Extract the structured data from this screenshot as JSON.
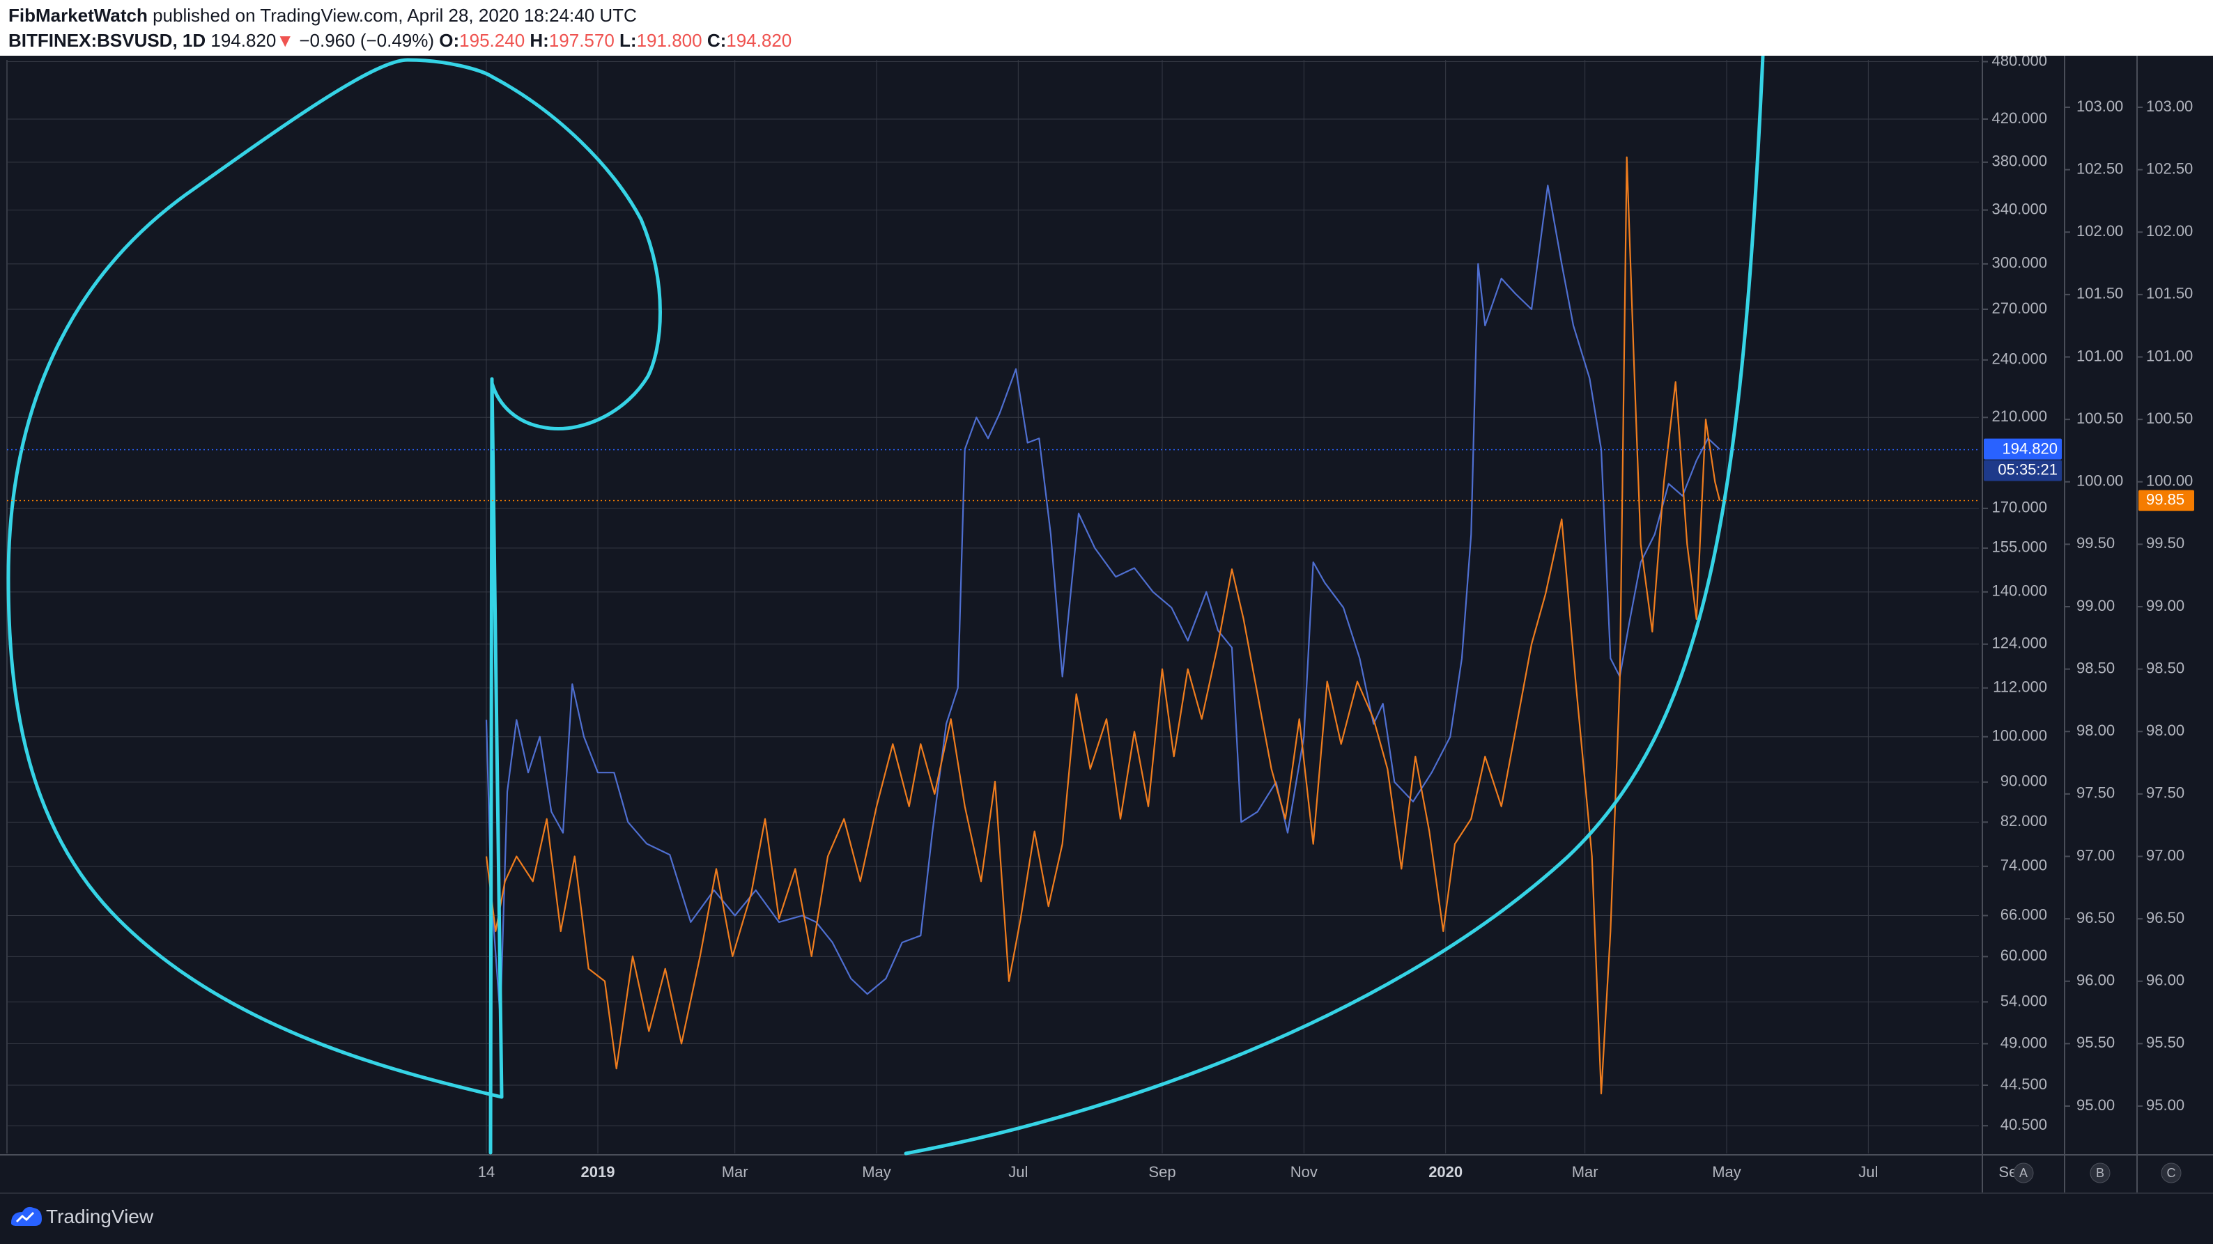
{
  "header": {
    "author": "FibMarketWatch",
    "published_text": " published on TradingView.com, April 28, 2020 18:24:40 UTC",
    "symbol": "BITFINEX:BSVUSD, 1D",
    "last": "194.820",
    "change": "−0.960 (−0.49%)",
    "open_label": "O:",
    "open": "195.240",
    "high_label": "H:",
    "high": "197.570",
    "low_label": "L:",
    "low": "191.800",
    "close_label": "C:",
    "close": "194.820"
  },
  "footer": {
    "brand": "TradingView"
  },
  "colors": {
    "background": "#131722",
    "grid": "#363a45",
    "blue_series": "#4f6fd1",
    "orange_series": "#f07d1e",
    "spiral": "#36d4e6",
    "axis_text": "#b2b5be",
    "label_blue": "#2962ff",
    "label_orange": "#f57c00"
  },
  "chart_data": {
    "type": "line",
    "x_ticks": [
      "14",
      "2019",
      "Mar",
      "May",
      "Jul",
      "Sep",
      "Nov",
      "2020",
      "Mar",
      "May",
      "Jul",
      "Sep"
    ],
    "x_range": [
      "2018-11-14",
      "2020-09-01"
    ],
    "price_axis": {
      "scale": "log",
      "ticks": [
        "480.000",
        "420.000",
        "380.000",
        "340.000",
        "300.000",
        "270.000",
        "240.000",
        "210.000",
        "170.000",
        "155.000",
        "140.000",
        "124.000",
        "112.000",
        "100.000",
        "90.000",
        "82.000",
        "74.000",
        "66.000",
        "60.000",
        "54.000",
        "49.000",
        "44.500",
        "40.500"
      ],
      "current_price_label": "194.820",
      "countdown_label": "05:35:21"
    },
    "scale_b": {
      "ticks": [
        "103.00",
        "102.50",
        "102.00",
        "101.50",
        "101.00",
        "100.50",
        "100.00",
        "99.50",
        "99.00",
        "98.50",
        "98.00",
        "97.50",
        "97.00",
        "96.50",
        "96.00",
        "95.50",
        "95.00"
      ]
    },
    "scale_c": {
      "ticks": [
        "103.00",
        "102.50",
        "102.00",
        "101.50",
        "101.00",
        "100.50",
        "100.00",
        "99.50",
        "99.00",
        "98.50",
        "98.00",
        "97.50",
        "97.00",
        "96.50",
        "96.00",
        "95.50",
        "95.00"
      ],
      "current_value_label": "99.85"
    },
    "axis_buttons": [
      "A",
      "B",
      "C"
    ],
    "series": [
      {
        "color": "#4f6fd1",
        "axis": "price",
        "points": [
          [
            "2018-11-14",
            104
          ],
          [
            "2018-11-16",
            70
          ],
          [
            "2018-11-20",
            52
          ],
          [
            "2018-11-23",
            88
          ],
          [
            "2018-11-27",
            104
          ],
          [
            "2018-12-02",
            92
          ],
          [
            "2018-12-07",
            100
          ],
          [
            "2018-12-12",
            84
          ],
          [
            "2018-12-17",
            80
          ],
          [
            "2018-12-21",
            113
          ],
          [
            "2018-12-26",
            100
          ],
          [
            "2019-01-01",
            92
          ],
          [
            "2019-01-08",
            92
          ],
          [
            "2019-01-14",
            82
          ],
          [
            "2019-01-22",
            78
          ],
          [
            "2019-02-01",
            76
          ],
          [
            "2019-02-10",
            65
          ],
          [
            "2019-02-20",
            70
          ],
          [
            "2019-03-01",
            66
          ],
          [
            "2019-03-10",
            70
          ],
          [
            "2019-03-20",
            65
          ],
          [
            "2019-03-30",
            66
          ],
          [
            "2019-04-05",
            65
          ],
          [
            "2019-04-12",
            62
          ],
          [
            "2019-04-20",
            57
          ],
          [
            "2019-04-27",
            55
          ],
          [
            "2019-05-05",
            57
          ],
          [
            "2019-05-12",
            62
          ],
          [
            "2019-05-20",
            63
          ],
          [
            "2019-05-25",
            80
          ],
          [
            "2019-05-31",
            103
          ],
          [
            "2019-06-05",
            112
          ],
          [
            "2019-06-08",
            195
          ],
          [
            "2019-06-13",
            210
          ],
          [
            "2019-06-18",
            200
          ],
          [
            "2019-06-23",
            212
          ],
          [
            "2019-06-30",
            235
          ],
          [
            "2019-07-05",
            198
          ],
          [
            "2019-07-10",
            200
          ],
          [
            "2019-07-15",
            160
          ],
          [
            "2019-07-20",
            115
          ],
          [
            "2019-07-27",
            168
          ],
          [
            "2019-08-03",
            155
          ],
          [
            "2019-08-12",
            145
          ],
          [
            "2019-08-20",
            148
          ],
          [
            "2019-08-28",
            140
          ],
          [
            "2019-09-05",
            135
          ],
          [
            "2019-09-12",
            125
          ],
          [
            "2019-09-20",
            140
          ],
          [
            "2019-09-25",
            128
          ],
          [
            "2019-10-01",
            123
          ],
          [
            "2019-10-05",
            82
          ],
          [
            "2019-10-12",
            84
          ],
          [
            "2019-10-20",
            90
          ],
          [
            "2019-10-25",
            80
          ],
          [
            "2019-11-01",
            100
          ],
          [
            "2019-11-05",
            150
          ],
          [
            "2019-11-10",
            143
          ],
          [
            "2019-11-18",
            135
          ],
          [
            "2019-11-25",
            120
          ],
          [
            "2019-12-01",
            103
          ],
          [
            "2019-12-05",
            108
          ],
          [
            "2019-12-10",
            90
          ],
          [
            "2019-12-18",
            86
          ],
          [
            "2019-12-26",
            92
          ],
          [
            "2020-01-03",
            100
          ],
          [
            "2020-01-08",
            120
          ],
          [
            "2020-01-12",
            160
          ],
          [
            "2020-01-15",
            300
          ],
          [
            "2020-01-18",
            260
          ],
          [
            "2020-01-25",
            290
          ],
          [
            "2020-01-31",
            280
          ],
          [
            "2020-02-07",
            270
          ],
          [
            "2020-02-14",
            360
          ],
          [
            "2020-02-20",
            300
          ],
          [
            "2020-02-25",
            260
          ],
          [
            "2020-03-03",
            230
          ],
          [
            "2020-03-08",
            195
          ],
          [
            "2020-03-12",
            120
          ],
          [
            "2020-03-16",
            115
          ],
          [
            "2020-03-20",
            130
          ],
          [
            "2020-03-25",
            150
          ],
          [
            "2020-03-31",
            160
          ],
          [
            "2020-04-06",
            180
          ],
          [
            "2020-04-12",
            175
          ],
          [
            "2020-04-18",
            190
          ],
          [
            "2020-04-23",
            200
          ],
          [
            "2020-04-28",
            195
          ]
        ]
      },
      {
        "color": "#f07d1e",
        "axis": "B",
        "points": [
          [
            "2018-11-14",
            97.0
          ],
          [
            "2018-11-18",
            96.4
          ],
          [
            "2018-11-22",
            96.8
          ],
          [
            "2018-11-27",
            97.0
          ],
          [
            "2018-12-04",
            96.8
          ],
          [
            "2018-12-10",
            97.3
          ],
          [
            "2018-12-16",
            96.4
          ],
          [
            "2018-12-22",
            97.0
          ],
          [
            "2018-12-28",
            96.1
          ],
          [
            "2019-01-04",
            96.0
          ],
          [
            "2019-01-09",
            95.3
          ],
          [
            "2019-01-16",
            96.2
          ],
          [
            "2019-01-23",
            95.6
          ],
          [
            "2019-01-30",
            96.1
          ],
          [
            "2019-02-06",
            95.5
          ],
          [
            "2019-02-14",
            96.2
          ],
          [
            "2019-02-21",
            96.9
          ],
          [
            "2019-02-28",
            96.2
          ],
          [
            "2019-03-08",
            96.7
          ],
          [
            "2019-03-14",
            97.3
          ],
          [
            "2019-03-20",
            96.5
          ],
          [
            "2019-03-27",
            96.9
          ],
          [
            "2019-04-03",
            96.2
          ],
          [
            "2019-04-10",
            97.0
          ],
          [
            "2019-04-17",
            97.3
          ],
          [
            "2019-04-24",
            96.8
          ],
          [
            "2019-05-01",
            97.4
          ],
          [
            "2019-05-08",
            97.9
          ],
          [
            "2019-05-15",
            97.4
          ],
          [
            "2019-05-20",
            97.9
          ],
          [
            "2019-05-26",
            97.5
          ],
          [
            "2019-06-02",
            98.1
          ],
          [
            "2019-06-08",
            97.4
          ],
          [
            "2019-06-15",
            96.8
          ],
          [
            "2019-06-21",
            97.6
          ],
          [
            "2019-06-27",
            96.0
          ],
          [
            "2019-07-02",
            96.5
          ],
          [
            "2019-07-08",
            97.2
          ],
          [
            "2019-07-14",
            96.6
          ],
          [
            "2019-07-20",
            97.1
          ],
          [
            "2019-07-26",
            98.3
          ],
          [
            "2019-08-01",
            97.7
          ],
          [
            "2019-08-08",
            98.1
          ],
          [
            "2019-08-14",
            97.3
          ],
          [
            "2019-08-20",
            98.0
          ],
          [
            "2019-08-26",
            97.4
          ],
          [
            "2019-09-01",
            98.5
          ],
          [
            "2019-09-06",
            97.8
          ],
          [
            "2019-09-12",
            98.5
          ],
          [
            "2019-09-18",
            98.1
          ],
          [
            "2019-09-25",
            98.7
          ],
          [
            "2019-10-01",
            99.3
          ],
          [
            "2019-10-06",
            98.9
          ],
          [
            "2019-10-12",
            98.3
          ],
          [
            "2019-10-18",
            97.7
          ],
          [
            "2019-10-24",
            97.3
          ],
          [
            "2019-10-30",
            98.1
          ],
          [
            "2019-11-05",
            97.1
          ],
          [
            "2019-11-11",
            98.4
          ],
          [
            "2019-11-17",
            97.9
          ],
          [
            "2019-11-24",
            98.4
          ],
          [
            "2019-12-01",
            98.1
          ],
          [
            "2019-12-07",
            97.7
          ],
          [
            "2019-12-13",
            96.9
          ],
          [
            "2019-12-19",
            97.8
          ],
          [
            "2019-12-25",
            97.2
          ],
          [
            "2019-12-31",
            96.4
          ],
          [
            "2020-01-05",
            97.1
          ],
          [
            "2020-01-12",
            97.3
          ],
          [
            "2020-01-18",
            97.8
          ],
          [
            "2020-01-25",
            97.4
          ],
          [
            "2020-01-31",
            98.0
          ],
          [
            "2020-02-07",
            98.7
          ],
          [
            "2020-02-13",
            99.1
          ],
          [
            "2020-02-20",
            99.7
          ],
          [
            "2020-02-26",
            98.4
          ],
          [
            "2020-03-04",
            97.0
          ],
          [
            "2020-03-08",
            95.1
          ],
          [
            "2020-03-12",
            96.4
          ],
          [
            "2020-03-16",
            98.4
          ],
          [
            "2020-03-19",
            102.6
          ],
          [
            "2020-03-22",
            101.0
          ],
          [
            "2020-03-25",
            99.5
          ],
          [
            "2020-03-30",
            98.8
          ],
          [
            "2020-04-04",
            100.0
          ],
          [
            "2020-04-09",
            100.8
          ],
          [
            "2020-04-14",
            99.5
          ],
          [
            "2020-04-18",
            98.9
          ],
          [
            "2020-04-22",
            100.5
          ],
          [
            "2020-04-26",
            100.0
          ],
          [
            "2020-04-28",
            99.85
          ]
        ]
      }
    ]
  }
}
